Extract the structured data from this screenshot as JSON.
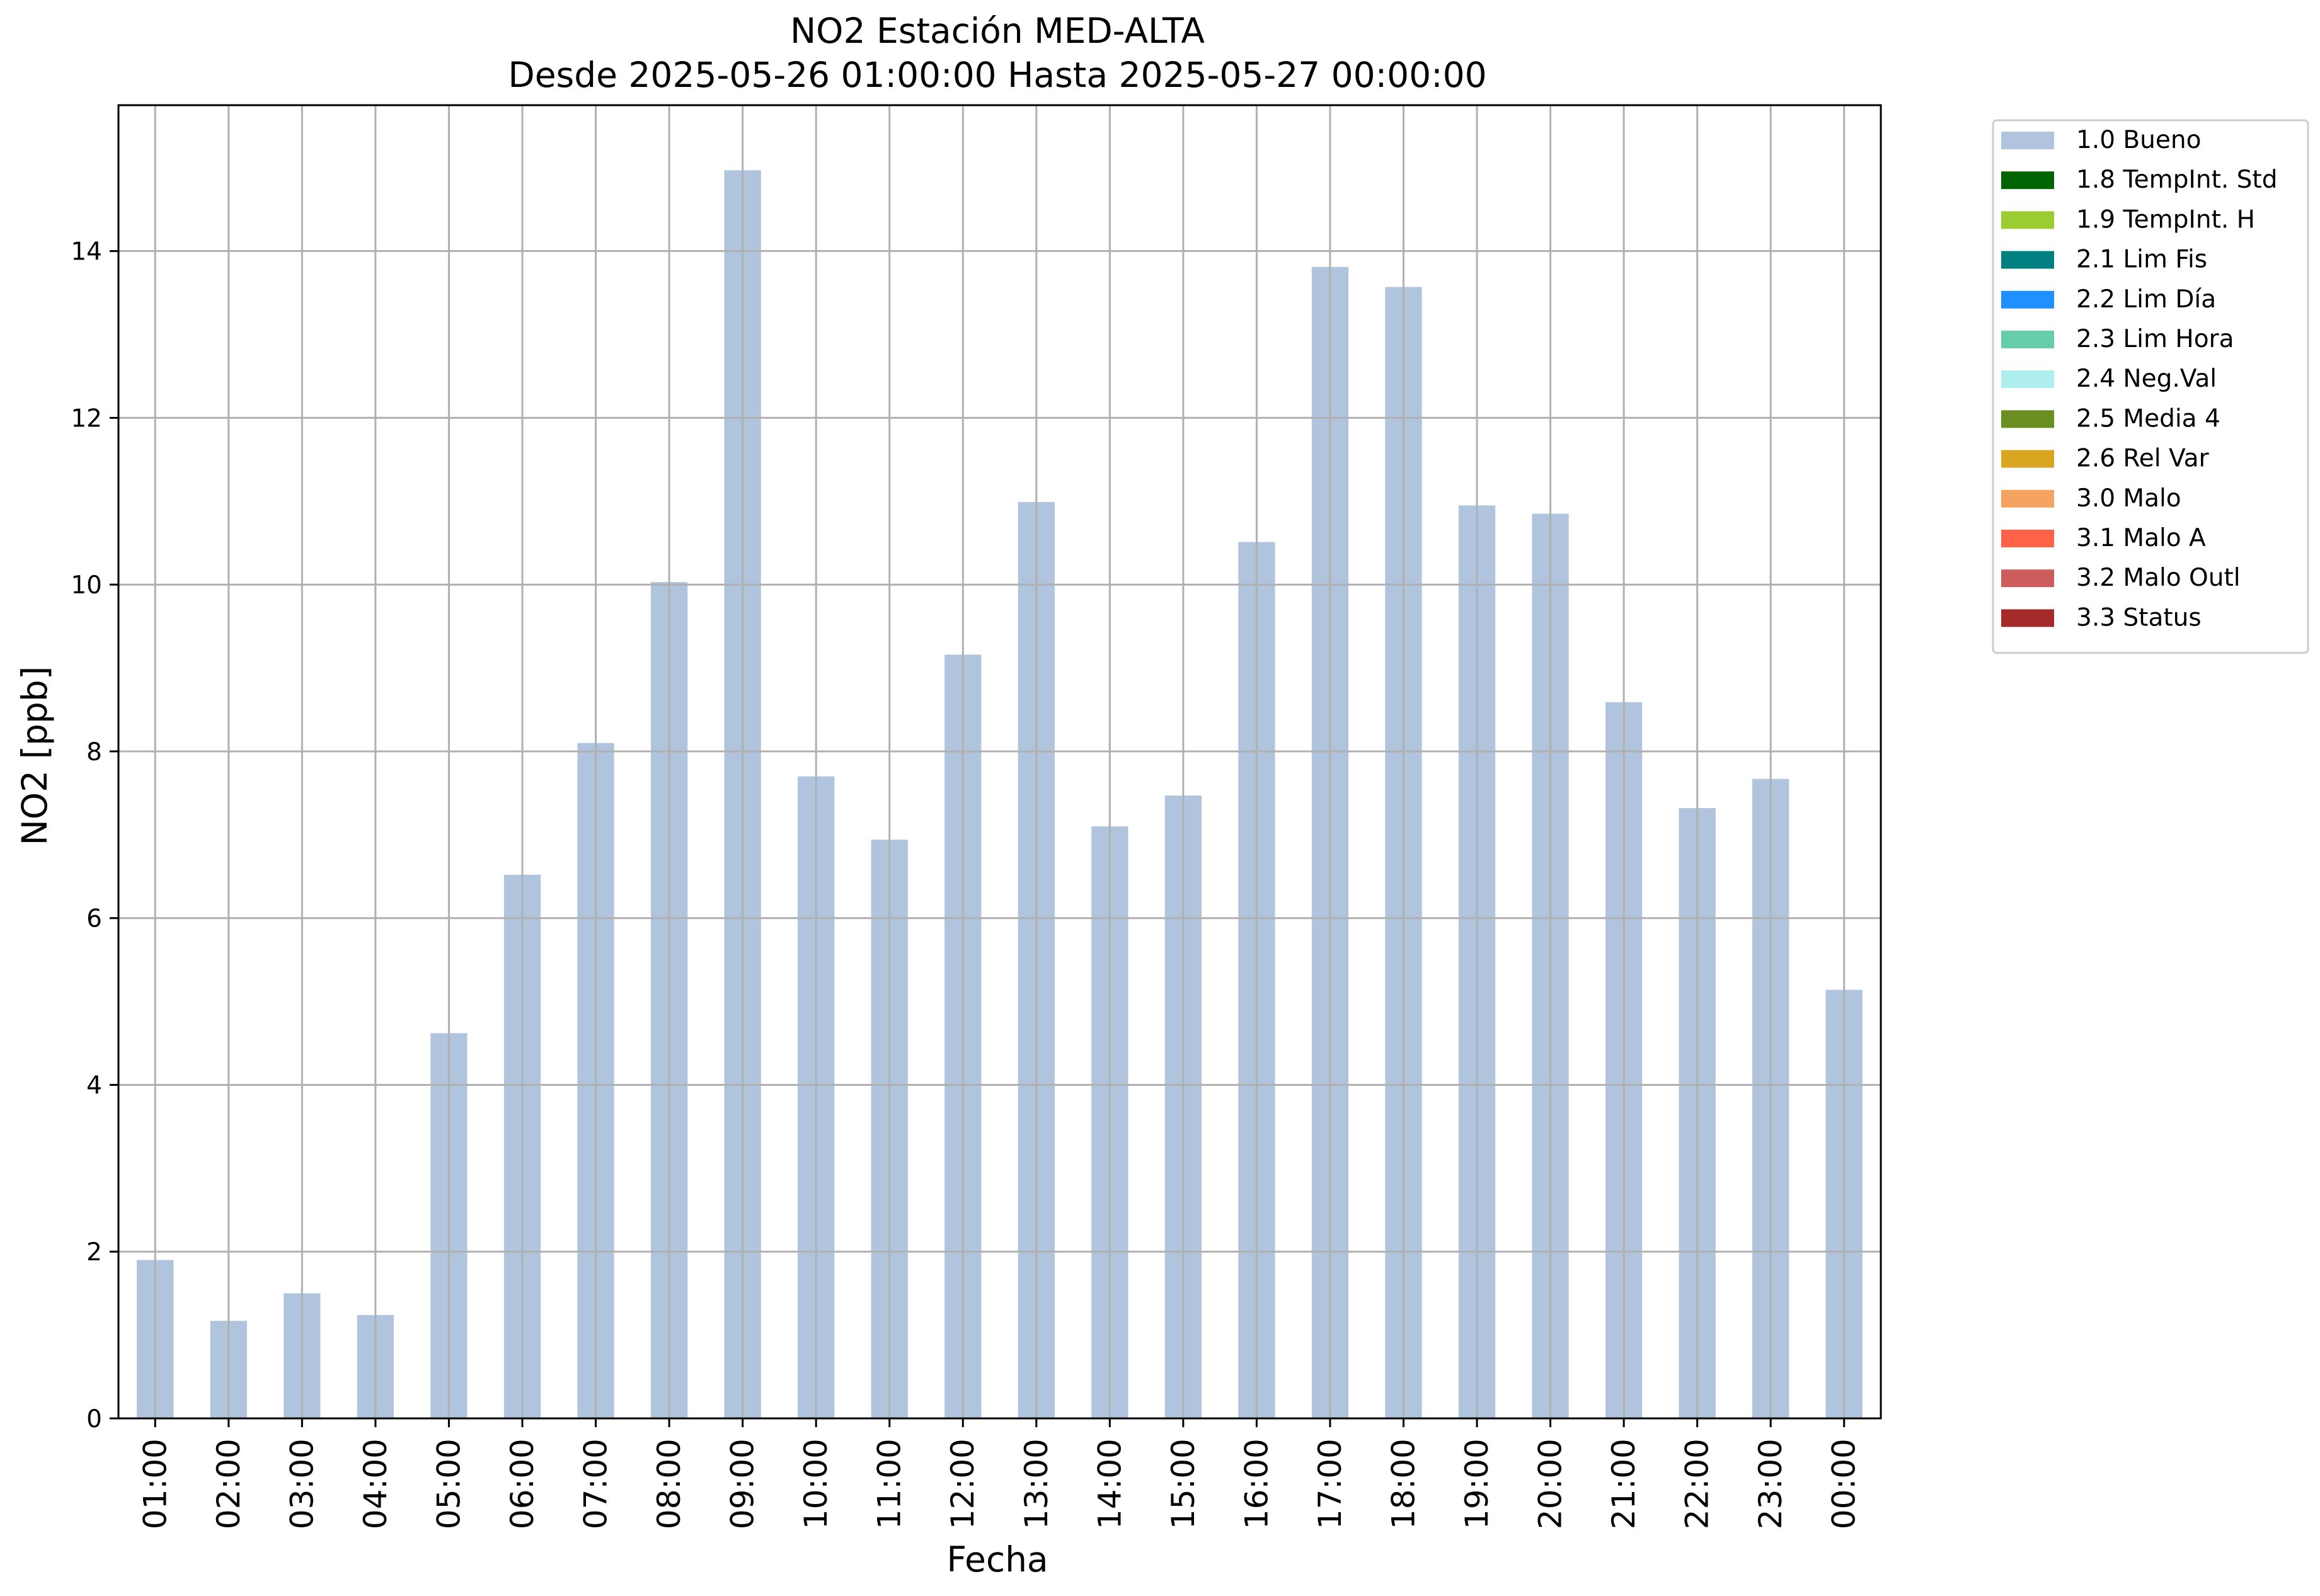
{
  "chart_data": {
    "type": "bar",
    "title": "NO2 Estación MED-ALTA",
    "subtitle": "Desde 2025-05-26 01:00:00 Hasta 2025-05-27 00:00:00",
    "xlabel": "Fecha",
    "ylabel": "NO2 [ppb]",
    "ylim": [
      0,
      15.75
    ],
    "yticks": [
      0,
      2,
      4,
      6,
      8,
      10,
      12,
      14
    ],
    "grid": true,
    "legend_position": "outside top-right",
    "categories": [
      "01:00",
      "02:00",
      "03:00",
      "04:00",
      "05:00",
      "06:00",
      "07:00",
      "08:00",
      "09:00",
      "10:00",
      "11:00",
      "12:00",
      "13:00",
      "14:00",
      "15:00",
      "16:00",
      "17:00",
      "18:00",
      "19:00",
      "20:00",
      "21:00",
      "22:00",
      "23:00",
      "00:00"
    ],
    "series": [
      {
        "name": "1.0 Bueno",
        "color": "#b0c4de",
        "values": [
          1.9,
          1.17,
          1.5,
          1.24,
          4.62,
          6.52,
          8.1,
          10.03,
          14.97,
          7.7,
          6.94,
          9.16,
          10.99,
          7.1,
          7.47,
          10.51,
          13.81,
          13.57,
          10.95,
          10.85,
          8.59,
          7.32,
          7.67,
          5.14
        ]
      }
    ],
    "legend": [
      {
        "label": "1.0 Bueno",
        "color": "#b0c4de"
      },
      {
        "label": "1.8 TempInt. Std",
        "color": "#006400"
      },
      {
        "label": "1.9 TempInt. H",
        "color": "#9acd32"
      },
      {
        "label": "2.1 Lim Fis",
        "color": "#008080"
      },
      {
        "label": "2.2 Lim Día",
        "color": "#1e90ff"
      },
      {
        "label": "2.3 Lim Hora",
        "color": "#66cdaa"
      },
      {
        "label": "2.4 Neg.Val",
        "color": "#afeeee"
      },
      {
        "label": "2.5 Media 4",
        "color": "#6b8e23"
      },
      {
        "label": "2.6 Rel Var",
        "color": "#daa520"
      },
      {
        "label": "3.0 Malo",
        "color": "#f4a460"
      },
      {
        "label": "3.1 Malo A",
        "color": "#ff6347"
      },
      {
        "label": "3.2 Malo Outl",
        "color": "#cd5c5c"
      },
      {
        "label": "3.3 Status",
        "color": "#a52a2a"
      }
    ]
  }
}
